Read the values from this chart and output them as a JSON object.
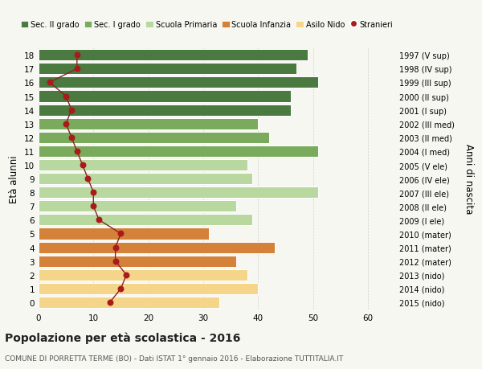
{
  "ages": [
    18,
    17,
    16,
    15,
    14,
    13,
    12,
    11,
    10,
    9,
    8,
    7,
    6,
    5,
    4,
    3,
    2,
    1,
    0
  ],
  "right_labels": [
    "1997 (V sup)",
    "1998 (IV sup)",
    "1999 (III sup)",
    "2000 (II sup)",
    "2001 (I sup)",
    "2002 (III med)",
    "2003 (II med)",
    "2004 (I med)",
    "2005 (V ele)",
    "2006 (IV ele)",
    "2007 (III ele)",
    "2008 (II ele)",
    "2009 (I ele)",
    "2010 (mater)",
    "2011 (mater)",
    "2012 (mater)",
    "2013 (nido)",
    "2014 (nido)",
    "2015 (nido)"
  ],
  "bar_values": [
    49,
    47,
    51,
    46,
    46,
    40,
    42,
    51,
    38,
    39,
    51,
    36,
    39,
    31,
    43,
    36,
    38,
    40,
    33
  ],
  "stranieri": [
    7,
    7,
    2,
    5,
    6,
    5,
    6,
    7,
    8,
    9,
    10,
    10,
    11,
    15,
    14,
    14,
    16,
    15,
    13
  ],
  "bar_colors": [
    "#4a7a40",
    "#4a7a40",
    "#4a7a40",
    "#4a7a40",
    "#4a7a40",
    "#7aaa5c",
    "#7aaa5c",
    "#7aaa5c",
    "#b8d8a0",
    "#b8d8a0",
    "#b8d8a0",
    "#b8d8a0",
    "#b8d8a0",
    "#d4813a",
    "#d4813a",
    "#d4813a",
    "#f5d58a",
    "#f5d58a",
    "#f5d58a"
  ],
  "legend_labels": [
    "Sec. II grado",
    "Sec. I grado",
    "Scuola Primaria",
    "Scuola Infanzia",
    "Asilo Nido",
    "Stranieri"
  ],
  "legend_colors": [
    "#4a7a40",
    "#7aaa5c",
    "#b8d8a0",
    "#d4813a",
    "#f5d58a",
    "#b22020"
  ],
  "ylabel_left": "Età alunni",
  "ylabel_right": "Anni di nascita",
  "title": "Popolazione per età scolastica - 2016",
  "subtitle": "COMUNE DI PORRETTA TERME (BO) - Dati ISTAT 1° gennaio 2016 - Elaborazione TUTTITALIA.IT",
  "bg_color": "#f7f7f2",
  "plot_bg_color": "#f7f7f2",
  "bar_edge_color": "#ffffff",
  "grid_color": "#cccccc",
  "stranieri_color": "#aa1a1a",
  "stranieri_line_color": "#882222"
}
